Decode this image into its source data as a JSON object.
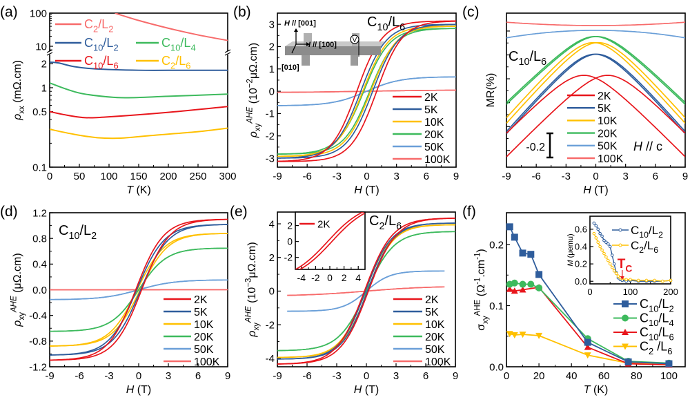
{
  "chart_data": [
    {
      "id": "a",
      "panel_label": "(a)",
      "type": "line",
      "xlabel": "*T* (K)",
      "ylabel": "*ρ*_{xx} (mΩ.cm)",
      "xlim": [
        0,
        300
      ],
      "ylim": [
        0.1,
        100
      ],
      "yscale": "log, broken axis between 2 and 10",
      "x_ticks": [
        0,
        50,
        100,
        150,
        200,
        250,
        300
      ],
      "x_tick_labels": [
        "0",
        "50",
        "100",
        "150",
        "200",
        "250",
        "300"
      ],
      "y_ticks": [
        0.1,
        0.5,
        1,
        2,
        10,
        100
      ],
      "y_tick_labels": [
        "0.1",
        "0.5",
        "1",
        "2",
        "10",
        "100"
      ],
      "legend": "in-plot, top",
      "series": [
        {
          "name": "C_{2}/L_{2}",
          "color": "#f76b6b",
          "points": [
            [
              110,
              100
            ],
            [
              150,
              60
            ],
            [
              200,
              35
            ],
            [
              250,
              22
            ],
            [
              300,
              15
            ]
          ]
        },
        {
          "name": "C_{10}/L_{2}",
          "color": "#2f5d9c",
          "points": [
            [
              0,
              2.1
            ],
            [
              15,
              2.05
            ],
            [
              40,
              1.85
            ],
            [
              75,
              1.73
            ],
            [
              150,
              1.66
            ],
            [
              225,
              1.66
            ],
            [
              300,
              1.66
            ]
          ]
        },
        {
          "name": "C_{10}/L_{4}",
          "color": "#3dba5d",
          "points": [
            [
              0,
              1.15
            ],
            [
              30,
              0.95
            ],
            [
              60,
              0.83
            ],
            [
              120,
              0.75
            ],
            [
              200,
              0.78
            ],
            [
              300,
              0.83
            ]
          ]
        },
        {
          "name": "C_{10}/L_{6}",
          "color": "#e8161c",
          "points": [
            [
              0,
              0.5
            ],
            [
              30,
              0.45
            ],
            [
              60,
              0.42
            ],
            [
              100,
              0.43
            ],
            [
              200,
              0.49
            ],
            [
              300,
              0.58
            ]
          ]
        },
        {
          "name": "C_{2}/L_{6}",
          "color": "#ffc000",
          "points": [
            [
              0,
              0.3
            ],
            [
              40,
              0.26
            ],
            [
              80,
              0.235
            ],
            [
              120,
              0.232
            ],
            [
              170,
              0.25
            ],
            [
              250,
              0.28
            ],
            [
              300,
              0.31
            ]
          ]
        }
      ]
    },
    {
      "id": "b",
      "panel_label": "(b)",
      "type": "line",
      "xlabel": "*H* (T)",
      "ylabel": "*ρ*_{xy}^{*AHE*} (10^{−2}μΩ.cm)",
      "sample": "C_{10}/L_{6}",
      "xlim": [
        -9,
        9
      ],
      "ylim": [
        -3.4,
        3.5
      ],
      "x_ticks": [
        -9,
        -6,
        -3,
        0,
        3,
        6,
        9
      ],
      "x_tick_labels": [
        "-9",
        "-6",
        "-3",
        "0",
        "3",
        "6",
        "9"
      ],
      "y_ticks": [
        -3,
        -2,
        -1,
        0,
        1,
        2,
        3
      ],
      "y_tick_labels": [
        "-3",
        "-2",
        "-1",
        "0",
        "1",
        "2",
        "3"
      ],
      "legend": "bottom-right",
      "inset_schematic": {
        "h_label": "*H* // [001]",
        "i_label": "*I* // [100]",
        "y_label": "[010]",
        "v_label": "V"
      },
      "series": [
        {
          "name": "2K",
          "color": "#e8161c",
          "saturation": 3.15,
          "coercive_field": 1.0,
          "saturation_field": 6.5
        },
        {
          "name": "5K",
          "color": "#2f5d9c",
          "saturation": 3.0,
          "coercive_field": 0.6,
          "saturation_field": 6.5
        },
        {
          "name": "10K",
          "color": "#ffc000",
          "saturation": 2.92,
          "coercive_field": 0.4,
          "saturation_field": 6.5
        },
        {
          "name": "20K",
          "color": "#3dba5d",
          "saturation": 2.82,
          "coercive_field": 0.3,
          "saturation_field": 6.5
        },
        {
          "name": "50K",
          "color": "#6a9fd8",
          "saturation": 0.65,
          "coercive_field": 0,
          "saturation_field": 8.5
        },
        {
          "name": "100K",
          "color": "#f76b6b",
          "saturation": 0.06,
          "coercive_field": 0,
          "saturation_field": 20
        }
      ]
    },
    {
      "id": "c",
      "panel_label": "(c)",
      "type": "line",
      "xlabel": "*H* (T)",
      "ylabel": "MR(%)",
      "sample": "C_{10}/L_{6}",
      "field_direction": "*H* // c",
      "scale_bar": "-0.2",
      "scale_bar_value": 0.2,
      "xlim": [
        -9,
        9
      ],
      "ylim": [
        -1.14,
        0.15
      ],
      "y_tick_labels_shown": false,
      "curves_offset": true,
      "x_ticks": [
        -9,
        -6,
        -3,
        0,
        3,
        6,
        9
      ],
      "x_tick_labels": [
        "-9",
        "-6",
        "-3",
        "0",
        "3",
        "6",
        "9"
      ],
      "y_ticks": [
        -1.0,
        -0.8,
        -0.6,
        -0.4,
        -0.2,
        0.0
      ],
      "legend": "bottom-center",
      "series": [
        {
          "name": "2K",
          "color": "#e8161c",
          "shape": "cusp",
          "peak_value": -0.371,
          "value_at_9T": -0.954,
          "peak_field": 1.2
        },
        {
          "name": "5K",
          "color": "#2f5d9c",
          "shape": "cusp",
          "peak_value": -0.194,
          "value_at_9T": -0.851,
          "peak_field": 0.1
        },
        {
          "name": "10K",
          "color": "#ffc000",
          "shape": "cusp",
          "peak_value": -0.097,
          "value_at_9T": -0.749,
          "peak_field": 0.25
        },
        {
          "name": "20K",
          "color": "#3dba5d",
          "shape": "cusp",
          "peak_value": -0.046,
          "value_at_9T": -0.606,
          "peak_field": 0.1
        },
        {
          "name": "50K",
          "color": "#6a9fd8",
          "shape": "parabolic",
          "peak_value": 0.006,
          "value_at_9T": -0.057,
          "peak_field": 0
        },
        {
          "name": "100K",
          "color": "#f76b6b",
          "shape": "parabolic",
          "peak_value": 0.046,
          "value_at_9T": 0.074,
          "peak_field": 0
        }
      ]
    },
    {
      "id": "d",
      "panel_label": "(d)",
      "type": "line",
      "xlabel": "*H* (T)",
      "ylabel": "*ρ*_{xy}^{*AHE*} (μΩ.cm)",
      "sample": "C_{10}/L_{2}",
      "xlim": [
        -9,
        9
      ],
      "ylim": [
        -1.2,
        1.2
      ],
      "x_ticks": [
        -9,
        -6,
        -3,
        0,
        3,
        6,
        9
      ],
      "x_tick_labels": [
        "-9",
        "-6",
        "-3",
        "0",
        "3",
        "6",
        "9"
      ],
      "y_ticks": [
        -1.2,
        -0.8,
        -0.4,
        0,
        0.4,
        0.8,
        1.2
      ],
      "y_tick_labels": [
        "-1.2",
        "-0.8",
        "-0.4",
        "0.0",
        "0.4",
        "0.8",
        "1.2"
      ],
      "legend": "bottom-right",
      "series": [
        {
          "name": "2K",
          "color": "#e8161c",
          "saturation": 1.1,
          "coercive_field": 0.3,
          "saturation_field": 7
        },
        {
          "name": "5K",
          "color": "#2f5d9c",
          "saturation": 1.02,
          "coercive_field": 0.2,
          "saturation_field": 7
        },
        {
          "name": "10K",
          "color": "#ffc000",
          "saturation": 0.88,
          "coercive_field": 0.15,
          "saturation_field": 7
        },
        {
          "name": "20K",
          "color": "#3dba5d",
          "saturation": 0.65,
          "coercive_field": 0,
          "saturation_field": 7
        },
        {
          "name": "50K",
          "color": "#6a9fd8",
          "saturation": 0.155,
          "coercive_field": 0,
          "saturation_field": 9
        },
        {
          "name": "100K",
          "color": "#f76b6b",
          "saturation": 0.002,
          "coercive_field": 0,
          "saturation_field": 20
        }
      ]
    },
    {
      "id": "e",
      "panel_label": "(e)",
      "type": "line",
      "xlabel": "*H* (T)",
      "ylabel": "*ρ*_{xy}^{*AHE*} (10^{−3}μΩ.cm)",
      "sample": "C_{2}/L_{6}",
      "xlim": [
        -9,
        9
      ],
      "ylim": [
        -4.5,
        4.7
      ],
      "x_ticks": [
        -9,
        -6,
        -3,
        0,
        3,
        6,
        9
      ],
      "x_tick_labels": [
        "-9",
        "-6",
        "-3",
        "0",
        "3",
        "6",
        "9"
      ],
      "y_ticks": [
        -4,
        -2,
        0,
        2,
        4
      ],
      "y_tick_labels": [
        "-4",
        "-2",
        "0",
        "2",
        "4"
      ],
      "legend": "bottom-right",
      "series": [
        {
          "name": "2K",
          "color": "#e8161c",
          "saturation": 4.35,
          "coercive_field": 0.2,
          "saturation_field": 7,
          "field_range": [
            -9,
            9
          ]
        },
        {
          "name": "5K",
          "color": "#2f5d9c",
          "saturation": 4.05,
          "coercive_field": 0.1,
          "saturation_field": 6.5,
          "field_range": [
            -9,
            9
          ]
        },
        {
          "name": "10K",
          "color": "#ffc000",
          "saturation": 3.95,
          "coercive_field": 0.1,
          "saturation_field": 6.5,
          "field_range": [
            -9,
            9
          ]
        },
        {
          "name": "20K",
          "color": "#3dba5d",
          "saturation": 3.55,
          "coercive_field": 0,
          "saturation_field": 7,
          "field_range": [
            -9,
            9
          ]
        },
        {
          "name": "50K",
          "color": "#6a9fd8",
          "saturation": 1.2,
          "coercive_field": 0,
          "saturation_field": 6,
          "field_range": [
            -8,
            8
          ]
        },
        {
          "name": "100K",
          "color": "#f76b6b",
          "saturation": 0.3,
          "coercive_field": 0,
          "saturation_field": 16,
          "field_range": [
            -8,
            8
          ]
        }
      ],
      "inset": {
        "xlim": [
          -4.85,
          4.95
        ],
        "ylim": [
          -3.5,
          3.7
        ],
        "x_ticks": [
          -4,
          -2,
          0,
          2,
          4
        ],
        "x_tick_labels": [
          "-4",
          "-2",
          "0",
          "2",
          "4"
        ],
        "y_ticks": [
          -2,
          0,
          2
        ],
        "y_tick_labels": [
          "-2",
          "0",
          "2"
        ],
        "series": [
          {
            "name": "2K",
            "color": "#e8161c",
            "saturation": 5.0,
            "coercive_field": 0.3,
            "saturation_field": 13,
            "field_range": [
              -5,
              5
            ]
          }
        ]
      }
    },
    {
      "id": "f",
      "panel_label": "(f)",
      "type": "line",
      "xlabel": "*T* (K)",
      "ylabel": "σ_{xy}^{AHE} (Ω^{-1}.cm^{-1})",
      "xlim": [
        0,
        110
      ],
      "ylim": [
        0,
        0.252
      ],
      "x_ticks": [
        0,
        20,
        40,
        60,
        80,
        100
      ],
      "x_tick_labels": [
        "0",
        "20",
        "40",
        "60",
        "80",
        "100"
      ],
      "y_ticks": [
        0,
        0.1,
        0.2
      ],
      "y_tick_labels": [
        "0.0",
        "0.1",
        "0.2"
      ],
      "legend": "right",
      "series": [
        {
          "name": "C_{10}/L_{2}",
          "color": "#2f5d9c",
          "marker": "square",
          "x": [
            2,
            5,
            10,
            15,
            20,
            50,
            75,
            100
          ],
          "y": [
            0.229,
            0.212,
            0.186,
            0.184,
            0.151,
            0.04,
            0.008,
            0.005
          ]
        },
        {
          "name": "C_{10}/L_{4}",
          "color": "#3dba5d",
          "marker": "circle",
          "x": [
            2,
            5,
            10,
            15,
            20,
            50,
            75,
            100
          ],
          "y": [
            0.135,
            0.137,
            0.135,
            0.135,
            0.129,
            0.046,
            0.009,
            0.006
          ]
        },
        {
          "name": "C_{10}/L_{6}",
          "color": "#e8161c",
          "marker": "triangle-up",
          "x": [
            2,
            5,
            10,
            20,
            50,
            75,
            100
          ],
          "y": [
            0.127,
            0.124,
            0.126,
            0.13,
            0.032,
            0.005,
            0.003
          ]
        },
        {
          "name": "C_{2} /L_{6}",
          "color": "#ffc000",
          "marker": "triangle-down",
          "x": [
            2,
            5,
            10,
            20,
            50,
            75,
            100
          ],
          "y": [
            0.054,
            0.052,
            0.053,
            0.051,
            0.019,
            0.006,
            0.004
          ]
        }
      ],
      "inset": {
        "ylabel": "*M* (μemu)",
        "xlim": [
          0,
          200
        ],
        "ylim": [
          -0.03,
          0.75
        ],
        "x_ticks": [
          0,
          100,
          200
        ],
        "x_tick_labels": [
          "0",
          "100",
          "200"
        ],
        "y_ticks": [
          0,
          0.2,
          0.4,
          0.6
        ],
        "y_tick_labels": [
          "0.0",
          "0.2",
          "0.4",
          "0.6"
        ],
        "annotation": "T_{C}",
        "annotation_color": "#e8161c",
        "annotation_x": 80,
        "series": [
          {
            "name": "C_{10}/L_{2}",
            "color": "#2f5d9c",
            "x": [
              10,
              15,
              20,
              25,
              30,
              35,
              40,
              45,
              50,
              55,
              60,
              65,
              70,
              75,
              80,
              90,
              100,
              120,
              140,
              160,
              180,
              200
            ],
            "y": [
              0.67,
              0.64,
              0.6,
              0.55,
              0.52,
              0.47,
              0.45,
              0.43,
              0.4,
              0.3,
              0.2,
              0.1,
              0.04,
              0.02,
              0.01,
              0.0,
              0.01,
              0.0,
              0.0,
              0.0,
              0.0,
              0.01
            ]
          },
          {
            "name": "C_{2}/L_{6}",
            "color": "#ffc000",
            "x": [
              10,
              15,
              20,
              25,
              30,
              35,
              40,
              45,
              50,
              55,
              60,
              65,
              70,
              75,
              80,
              90,
              100,
              120,
              140,
              160,
              180,
              200
            ],
            "y": [
              0.55,
              0.5,
              0.45,
              0.4,
              0.36,
              0.32,
              0.28,
              0.24,
              0.2,
              0.16,
              0.12,
              0.09,
              0.06,
              0.04,
              0.03,
              0.02,
              0.02,
              0.01,
              0.01,
              0.01,
              0.0,
              0.01
            ]
          }
        ]
      }
    }
  ]
}
